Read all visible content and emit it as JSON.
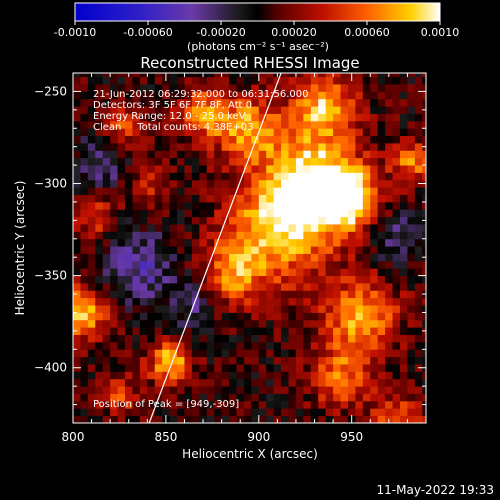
{
  "chart_data": {
    "type": "heatmap",
    "title": "Reconstructed RHESSI Image",
    "xlabel": "Heliocentric X (arcsec)",
    "ylabel": "Heliocentric Y (arcsec)",
    "xlim": [
      800,
      990
    ],
    "ylim": [
      -430,
      -240
    ],
    "x_ticks": [
      "800",
      "850",
      "900",
      "950"
    ],
    "y_ticks": [
      "-250",
      "-300",
      "-350",
      "-400"
    ],
    "colorbar": {
      "ticks": [
        "-0.0010",
        "-0.00060",
        "-0.00020",
        "0.00020",
        "0.00060",
        "0.0010"
      ],
      "range": [
        -0.001,
        0.001
      ],
      "units": "(photons cm⁻² s⁻¹ asec⁻²)"
    },
    "annotations": [
      "21-Jun-2012 06:29:32.000 to 06:31:56.000",
      "Detectors: 3F 5F 6F 7F 8F, Att 0",
      "Energy Range: 12.0 - 25.0 keV",
      "Clean     Total counts: 4.38E+03"
    ],
    "peak_label": "Position of Peak = [949,-309]",
    "peak": [
      949,
      -309
    ],
    "limb_line": [
      [
        841,
        -430
      ],
      [
        912,
        -240
      ]
    ],
    "blobs": [
      {
        "x": 930,
        "y": -300,
        "amp": 1.0,
        "s": 18
      },
      {
        "x": 948,
        "y": -308,
        "amp": 0.9,
        "s": 10
      },
      {
        "x": 910,
        "y": -325,
        "amp": 0.75,
        "s": 20
      },
      {
        "x": 935,
        "y": -258,
        "amp": 0.75,
        "s": 12
      },
      {
        "x": 895,
        "y": -270,
        "amp": 0.7,
        "s": 12
      },
      {
        "x": 870,
        "y": -262,
        "amp": 0.6,
        "s": 10
      },
      {
        "x": 885,
        "y": -350,
        "amp": 0.55,
        "s": 12
      },
      {
        "x": 955,
        "y": -372,
        "amp": 0.7,
        "s": 14
      },
      {
        "x": 945,
        "y": -405,
        "amp": 0.55,
        "s": 12
      },
      {
        "x": 852,
        "y": -397,
        "amp": 0.8,
        "s": 8
      },
      {
        "x": 804,
        "y": -370,
        "amp": 0.85,
        "s": 10
      },
      {
        "x": 812,
        "y": -318,
        "amp": 0.45,
        "s": 8
      },
      {
        "x": 828,
        "y": -268,
        "amp": 0.5,
        "s": 8
      },
      {
        "x": 840,
        "y": -300,
        "amp": 0.35,
        "s": 8
      },
      {
        "x": 825,
        "y": -415,
        "amp": 0.4,
        "s": 8
      },
      {
        "x": 975,
        "y": -430,
        "amp": 0.55,
        "s": 10
      },
      {
        "x": 983,
        "y": -288,
        "amp": 0.6,
        "s": 8
      },
      {
        "x": 835,
        "y": -345,
        "amp": -0.4,
        "s": 14
      },
      {
        "x": 815,
        "y": -290,
        "amp": -0.35,
        "s": 10
      },
      {
        "x": 865,
        "y": -365,
        "amp": -0.3,
        "s": 10
      },
      {
        "x": 975,
        "y": -330,
        "amp": -0.3,
        "s": 10
      }
    ]
  },
  "footer": {
    "timestamp": "11-May-2022 19:33"
  }
}
